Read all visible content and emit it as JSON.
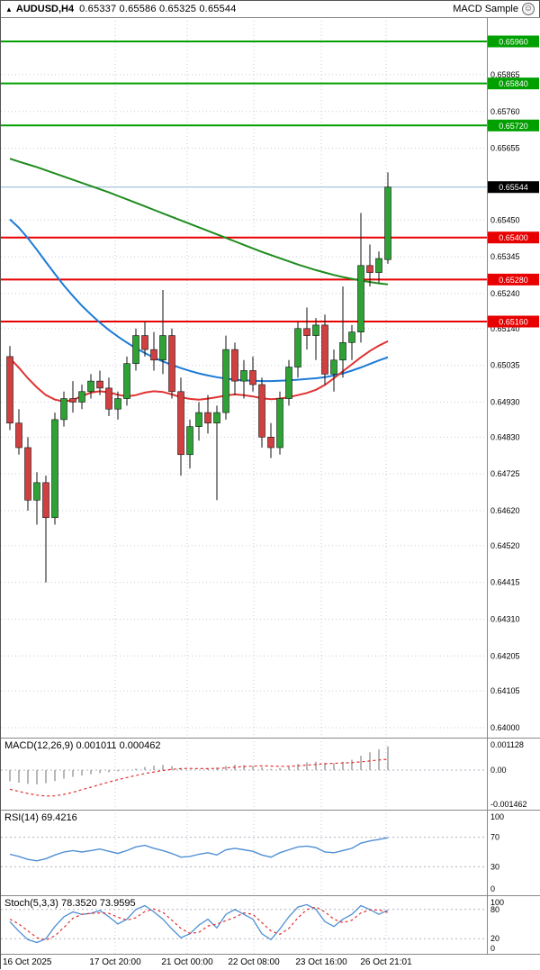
{
  "header": {
    "symbol": "AUDUSD,H4",
    "ohlc_text": "0.65337 0.65586 0.65325 0.65544",
    "expert_label": "MACD Sample"
  },
  "colors": {
    "bull": "#2fa236",
    "bear": "#d14040",
    "wick": "#111111",
    "resistance": "#00a000",
    "support": "#e80000",
    "current_line": "#8cb4d2",
    "current_badge": "#000000",
    "ma_slow": "#1e8c1e",
    "ma_mid": "#1c7ad6",
    "ma_fast": "#e03232",
    "grid": "#c9c9dd",
    "macd_hist": "#999999",
    "macd_signal": "#e03232",
    "rsi_line": "#4f8fd3",
    "stoch_main": "#4f8fd3",
    "stoch_signal": "#e03232"
  },
  "axis": {
    "ticks": [
      {
        "label": "0.65960",
        "value": 0.6596,
        "type": "resistance"
      },
      {
        "label": "0.65865",
        "value": 0.65865,
        "type": "plain"
      },
      {
        "label": "0.65840",
        "value": 0.6584,
        "type": "resistance"
      },
      {
        "label": "0.65760",
        "value": 0.6576,
        "type": "plain"
      },
      {
        "label": "0.65720",
        "value": 0.6572,
        "type": "resistance"
      },
      {
        "label": "0.65655",
        "value": 0.65655,
        "type": "plain"
      },
      {
        "label": "0.65544",
        "value": 0.65544,
        "type": "current"
      },
      {
        "label": "0.65450",
        "value": 0.6545,
        "type": "plain"
      },
      {
        "label": "0.65400",
        "value": 0.654,
        "type": "support"
      },
      {
        "label": "0.65345",
        "value": 0.65345,
        "type": "plain"
      },
      {
        "label": "0.65280",
        "value": 0.6528,
        "type": "support"
      },
      {
        "label": "0.65240",
        "value": 0.6524,
        "type": "plain"
      },
      {
        "label": "0.65160",
        "value": 0.6516,
        "type": "support"
      },
      {
        "label": "0.65140",
        "value": 0.6514,
        "type": "plain"
      },
      {
        "label": "0.65035",
        "value": 0.65035,
        "type": "plain"
      },
      {
        "label": "0.64930",
        "value": 0.6493,
        "type": "plain"
      },
      {
        "label": "0.64830",
        "value": 0.6483,
        "type": "plain"
      },
      {
        "label": "0.64725",
        "value": 0.64725,
        "type": "plain"
      },
      {
        "label": "0.64620",
        "value": 0.6462,
        "type": "plain"
      },
      {
        "label": "0.64520",
        "value": 0.6452,
        "type": "plain"
      },
      {
        "label": "0.64415",
        "value": 0.64415,
        "type": "plain"
      },
      {
        "label": "0.64310",
        "value": 0.6431,
        "type": "plain"
      },
      {
        "label": "0.64205",
        "value": 0.64205,
        "type": "plain"
      },
      {
        "label": "0.64105",
        "value": 0.64105,
        "type": "plain"
      },
      {
        "label": "0.64000",
        "value": 0.64,
        "type": "plain"
      }
    ]
  },
  "chart_data": {
    "type": "candlestick",
    "symbol": "AUDUSD",
    "timeframe": "H4",
    "current_bar": {
      "open": 0.65337,
      "high": 0.65586,
      "low": 0.65325,
      "close": 0.65544
    },
    "y_range": [
      0.64,
      0.6596
    ],
    "resistance_levels": [
      0.6596,
      0.6584,
      0.6572
    ],
    "support_levels": [
      0.654,
      0.6528,
      0.6516
    ],
    "x_labels": [
      "16 Oct 2025",
      "17 Oct 20:00",
      "21 Oct 00:00",
      "22 Oct 08:00",
      "23 Oct 16:00",
      "26 Oct 21:01"
    ],
    "candles": [
      [
        0.6506,
        0.6509,
        0.6485,
        0.6487
      ],
      [
        0.6487,
        0.6491,
        0.6478,
        0.648
      ],
      [
        0.648,
        0.6483,
        0.6462,
        0.6465
      ],
      [
        0.6465,
        0.6473,
        0.6458,
        0.647
      ],
      [
        0.647,
        0.6472,
        0.64415,
        0.646
      ],
      [
        0.646,
        0.649,
        0.6458,
        0.6488
      ],
      [
        0.6488,
        0.6496,
        0.6486,
        0.6494
      ],
      [
        0.6494,
        0.6499,
        0.649,
        0.6493
      ],
      [
        0.6493,
        0.6498,
        0.6491,
        0.6496
      ],
      [
        0.6496,
        0.6501,
        0.6494,
        0.6499
      ],
      [
        0.6499,
        0.6502,
        0.6495,
        0.6497
      ],
      [
        0.6497,
        0.65,
        0.6489,
        0.6491
      ],
      [
        0.6491,
        0.6496,
        0.6488,
        0.6494
      ],
      [
        0.6494,
        0.6506,
        0.6492,
        0.6504
      ],
      [
        0.6504,
        0.6514,
        0.6502,
        0.6512
      ],
      [
        0.6512,
        0.6516,
        0.6506,
        0.6508
      ],
      [
        0.6508,
        0.6513,
        0.6502,
        0.6505
      ],
      [
        0.6505,
        0.6525,
        0.6501,
        0.6512
      ],
      [
        0.6512,
        0.6514,
        0.6494,
        0.6496
      ],
      [
        0.6496,
        0.65,
        0.6472,
        0.6478
      ],
      [
        0.6478,
        0.6488,
        0.6474,
        0.6486
      ],
      [
        0.6486,
        0.6493,
        0.6482,
        0.649
      ],
      [
        0.649,
        0.6495,
        0.6484,
        0.6487
      ],
      [
        0.6487,
        0.6492,
        0.6465,
        0.649
      ],
      [
        0.649,
        0.6512,
        0.6488,
        0.6508
      ],
      [
        0.6508,
        0.651,
        0.6495,
        0.6499
      ],
      [
        0.6499,
        0.6505,
        0.6494,
        0.6502
      ],
      [
        0.6502,
        0.6506,
        0.6496,
        0.6498
      ],
      [
        0.6498,
        0.65,
        0.648,
        0.6483
      ],
      [
        0.6483,
        0.6487,
        0.6477,
        0.648
      ],
      [
        0.648,
        0.6496,
        0.6478,
        0.6494
      ],
      [
        0.6494,
        0.6505,
        0.6492,
        0.6503
      ],
      [
        0.6503,
        0.6516,
        0.65,
        0.6514
      ],
      [
        0.6514,
        0.652,
        0.6508,
        0.6512
      ],
      [
        0.6512,
        0.6517,
        0.6505,
        0.6515
      ],
      [
        0.6515,
        0.6518,
        0.6498,
        0.6501
      ],
      [
        0.6501,
        0.6508,
        0.6496,
        0.6505
      ],
      [
        0.6505,
        0.6526,
        0.65,
        0.651
      ],
      [
        0.651,
        0.6515,
        0.6505,
        0.6513
      ],
      [
        0.6513,
        0.6547,
        0.651,
        0.6532
      ],
      [
        0.6532,
        0.6538,
        0.6526,
        0.653
      ],
      [
        0.653,
        0.6536,
        0.6527,
        0.6534
      ],
      [
        0.65337,
        0.65586,
        0.65325,
        0.65544
      ]
    ],
    "ma_slow": [
      0.65625,
      0.65617,
      0.65609,
      0.65601,
      0.65592,
      0.65583,
      0.65574,
      0.65565,
      0.65556,
      0.65547,
      0.65538,
      0.65529,
      0.65519,
      0.65509,
      0.65499,
      0.65489,
      0.65479,
      0.65469,
      0.65459,
      0.65449,
      0.65439,
      0.65429,
      0.65419,
      0.65409,
      0.65399,
      0.65389,
      0.65379,
      0.65369,
      0.65359,
      0.6535,
      0.65341,
      0.65332,
      0.65323,
      0.65315,
      0.65307,
      0.653,
      0.65293,
      0.65287,
      0.65282,
      0.65277,
      0.65273,
      0.65269,
      0.65266
    ],
    "ma_mid": [
      0.65452,
      0.65428,
      0.65398,
      0.65365,
      0.6533,
      0.65296,
      0.65263,
      0.65233,
      0.65205,
      0.6518,
      0.65157,
      0.65136,
      0.65117,
      0.651,
      0.65084,
      0.6507,
      0.65057,
      0.65046,
      0.65036,
      0.65027,
      0.65019,
      0.65012,
      0.65006,
      0.65001,
      0.64997,
      0.64994,
      0.64992,
      0.64991,
      0.6499,
      0.6499,
      0.64991,
      0.64992,
      0.64994,
      0.64996,
      0.64998,
      0.65001,
      0.65006,
      0.65012,
      0.6502,
      0.65029,
      0.65039,
      0.65049,
      0.65058
    ],
    "ma_fast": [
      0.65055,
      0.65028,
      0.64998,
      0.64972,
      0.6495,
      0.64937,
      0.64932,
      0.64936,
      0.64947,
      0.64957,
      0.64961,
      0.64958,
      0.64951,
      0.64946,
      0.6495,
      0.64957,
      0.64961,
      0.64959,
      0.64952,
      0.64944,
      0.64939,
      0.64937,
      0.6494,
      0.64944,
      0.64949,
      0.64952,
      0.6495,
      0.64946,
      0.64941,
      0.64938,
      0.6494,
      0.64944,
      0.6495,
      0.64956,
      0.64965,
      0.64979,
      0.64998,
      0.65018,
      0.65038,
      0.65058,
      0.65076,
      0.65091,
      0.65104
    ],
    "indicators": [
      {
        "name": "MACD",
        "label": "MACD(12,26,9) 0.001011 0.000462",
        "values_text": [
          "0.001011",
          "0.000462"
        ],
        "ticks": [
          {
            "label": "0.001128",
            "value": 0.001128
          },
          {
            "label": "0.00",
            "value": 0
          },
          {
            "label": "-0.001462",
            "value": -0.001462
          }
        ],
        "histogram": [
          -0.00048,
          -0.00054,
          -0.00059,
          -0.00061,
          -0.00056,
          -0.00047,
          -0.00037,
          -0.00029,
          -0.00023,
          -0.00018,
          -0.00013,
          -9e-05,
          -5e-05,
          -1e-05,
          6e-05,
          0.00013,
          0.00019,
          0.00022,
          0.00017,
          8e-05,
          1e-05,
          0.0,
          5e-05,
          0.00011,
          0.00018,
          0.00023,
          0.00021,
          0.00018,
          0.00012,
          5e-05,
          9e-05,
          0.00016,
          0.00026,
          0.00033,
          0.00036,
          0.00031,
          0.00029,
          0.00036,
          0.00044,
          0.00061,
          0.00076,
          0.00089,
          0.001011
        ],
        "signal": [
          -0.00082,
          -0.00091,
          -0.001,
          -0.00107,
          -0.00111,
          -0.0011,
          -0.00104,
          -0.00095,
          -0.00084,
          -0.00073,
          -0.00062,
          -0.00051,
          -0.00041,
          -0.00032,
          -0.00023,
          -0.00015,
          -8e-05,
          -2e-05,
          3e-05,
          6e-05,
          7e-05,
          6e-05,
          6e-05,
          7e-05,
          9e-05,
          0.00012,
          0.00015,
          0.00017,
          0.00018,
          0.00017,
          0.00016,
          0.00016,
          0.00018,
          0.00021,
          0.00024,
          0.00027,
          0.00029,
          0.0003,
          0.00032,
          0.00035,
          0.00039,
          0.00043,
          0.000462
        ]
      },
      {
        "name": "RSI",
        "label": "RSI(14) 69.4216",
        "values_text": [
          "69.4216"
        ],
        "ticks": [
          {
            "label": "100",
            "value": 100
          },
          {
            "label": "70",
            "value": 70
          },
          {
            "label": "30",
            "value": 30
          },
          {
            "label": "0",
            "value": 0
          }
        ],
        "levels": [
          70,
          30
        ],
        "values": [
          47,
          44,
          40,
          38,
          41,
          46,
          50,
          52,
          50,
          52,
          54,
          51,
          48,
          52,
          57,
          59,
          55,
          52,
          48,
          43,
          44,
          47,
          49,
          46,
          53,
          55,
          53,
          51,
          46,
          43,
          49,
          53,
          57,
          58,
          56,
          50,
          49,
          52,
          55,
          62,
          65,
          67,
          69.42
        ]
      },
      {
        "name": "Stochastic",
        "label": "Stoch(5,3,3) 78.3520 73.9595",
        "values_text": [
          "78.3520",
          "73.9595"
        ],
        "ticks": [
          {
            "label": "100",
            "value": 100
          },
          {
            "label": "80",
            "value": 80
          },
          {
            "label": "20",
            "value": 20
          },
          {
            "label": "0",
            "value": 0
          }
        ],
        "levels": [
          80,
          20
        ],
        "main": [
          55,
          35,
          18,
          12,
          20,
          45,
          65,
          75,
          70,
          72,
          78,
          65,
          50,
          60,
          80,
          88,
          75,
          60,
          40,
          22,
          30,
          48,
          60,
          42,
          70,
          80,
          70,
          60,
          30,
          18,
          40,
          65,
          85,
          90,
          80,
          55,
          45,
          60,
          70,
          88,
          80,
          70,
          78.35
        ],
        "signal": [
          60,
          50,
          36,
          22,
          17,
          26,
          43,
          62,
          70,
          72,
          73,
          72,
          64,
          58,
          63,
          76,
          81,
          74,
          58,
          41,
          31,
          33,
          46,
          50,
          57,
          64,
          73,
          70,
          53,
          36,
          29,
          41,
          63,
          80,
          85,
          75,
          60,
          53,
          58,
          73,
          79,
          79,
          73.96
        ]
      }
    ]
  }
}
